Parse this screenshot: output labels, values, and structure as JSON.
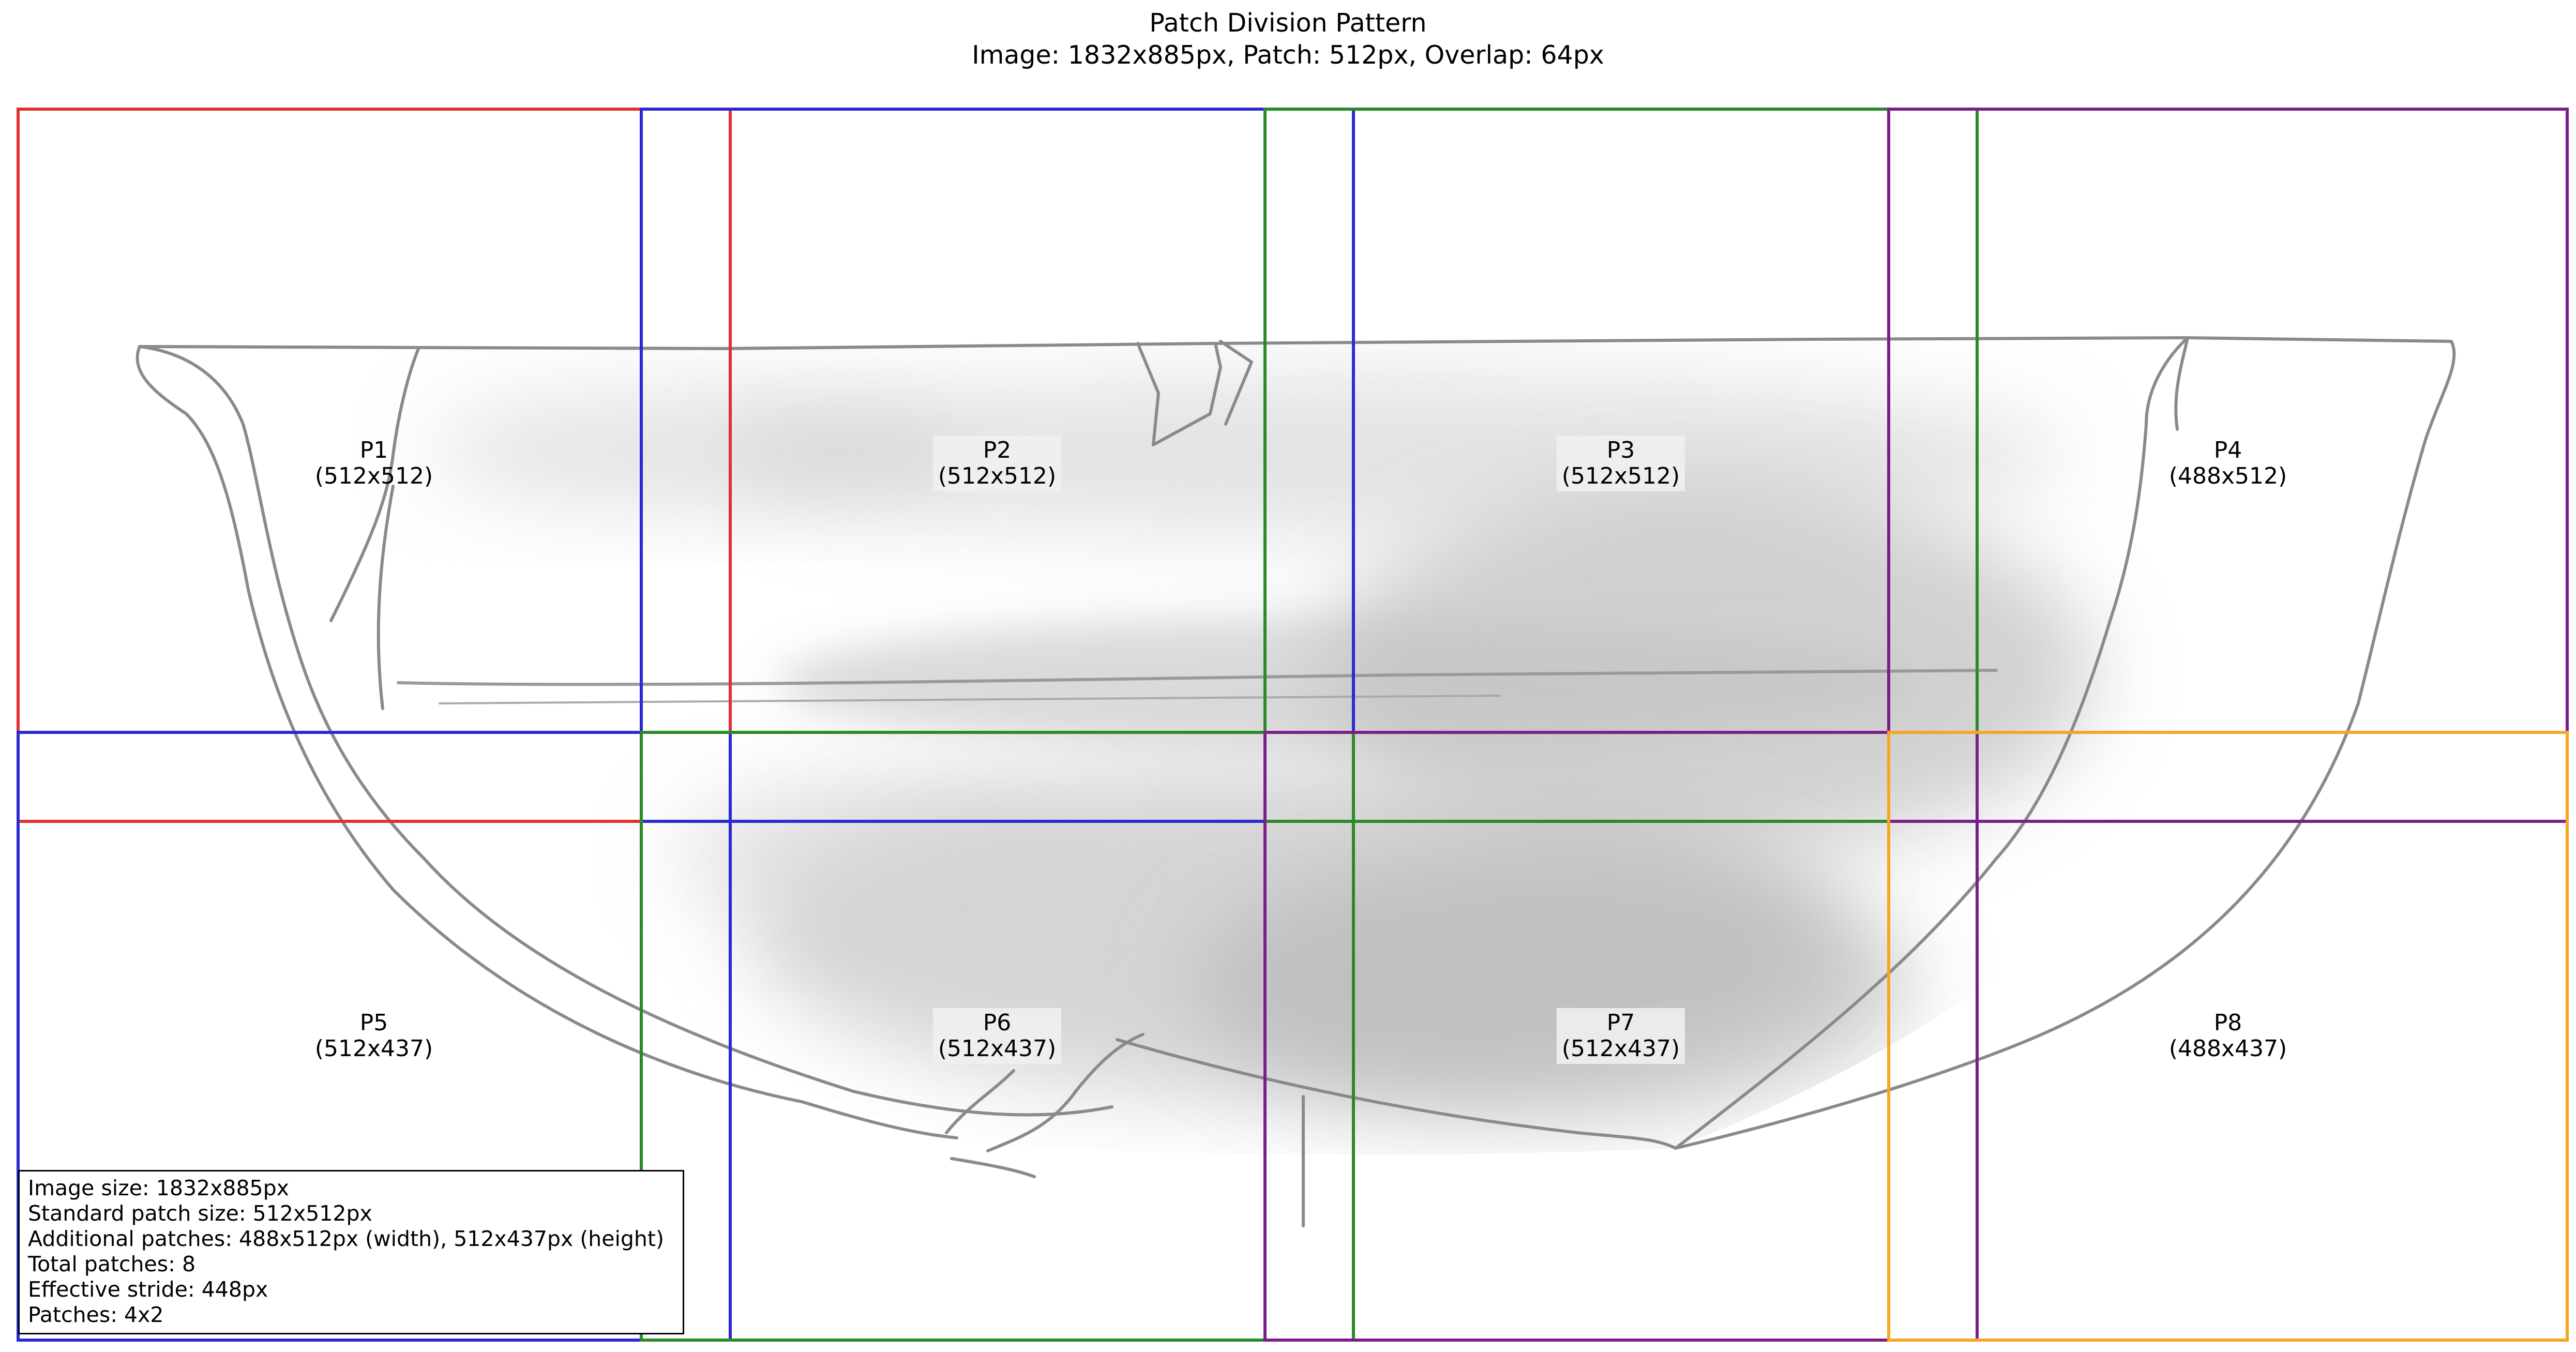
{
  "title": {
    "line1": "Patch Division Pattern",
    "line2": "Image: 1832x885px, Patch: 512px, Overlap: 64px"
  },
  "image_description": "pencil sketch of a bowl profile",
  "patches": [
    {
      "id": "P1",
      "size": "(512x512)",
      "color": "#e03030",
      "row": 0,
      "col": 0
    },
    {
      "id": "P2",
      "size": "(512x512)",
      "color": "#2a2ad0",
      "row": 0,
      "col": 1
    },
    {
      "id": "P3",
      "size": "(512x512)",
      "color": "#2a8a2a",
      "row": 0,
      "col": 2
    },
    {
      "id": "P4",
      "size": "(488x512)",
      "color": "#7a1f8a",
      "row": 0,
      "col": 3
    },
    {
      "id": "P5",
      "size": "(512x437)",
      "color": "#2a2ad0",
      "row": 1,
      "col": 0
    },
    {
      "id": "P6",
      "size": "(512x437)",
      "color": "#2a8a2a",
      "row": 1,
      "col": 1
    },
    {
      "id": "P7",
      "size": "(512x437)",
      "color": "#7a1f8a",
      "row": 1,
      "col": 2
    },
    {
      "id": "P8",
      "size": "(488x437)",
      "color": "#f5a623",
      "row": 1,
      "col": 3
    }
  ],
  "info": {
    "line1": "Image size: 1832x885px",
    "line2": "Standard patch size: 512x512px",
    "line3": "Additional patches: 488x512px (width), 512x437px (height)",
    "line4": "Total patches: 8",
    "line5": "Effective stride: 448px",
    "line6": "Patches: 4x2"
  }
}
